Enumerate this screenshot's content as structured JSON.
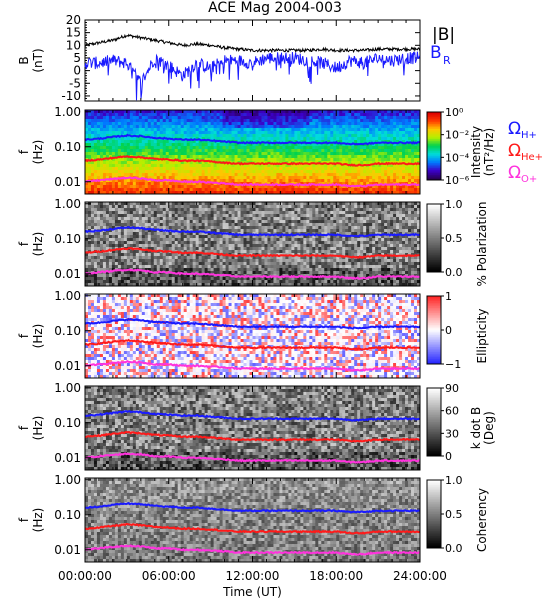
{
  "title": "ACE Mag 2004-003",
  "x_axis": {
    "label": "Time (UT)",
    "ticks": [
      "00:00:00",
      "06:00:00",
      "12:00:00",
      "18:00:00",
      "24:00:00"
    ],
    "range_hours": [
      0,
      24
    ]
  },
  "colors": {
    "bmag": "#000000",
    "br": "#1a1aff",
    "h_plus": "#1a1aff",
    "he_plus": "#ff1a1a",
    "o_plus": "#ff33dd"
  },
  "chart_data": [
    {
      "type": "line",
      "panel": "magnetic-field",
      "ylabel_lines": [
        "B",
        "(nT)"
      ],
      "ylim": [
        -12,
        20
      ],
      "yticks": [
        -10,
        -5,
        0,
        5,
        10,
        15,
        20
      ],
      "x_hours": [
        0,
        1,
        2,
        3,
        4,
        5,
        6,
        7,
        8,
        9,
        10,
        11,
        12,
        13,
        14,
        15,
        16,
        17,
        18,
        19,
        20,
        21,
        22,
        23,
        24
      ],
      "series": [
        {
          "name": "|B|",
          "values": [
            10,
            11,
            12,
            14,
            13,
            12,
            11,
            10,
            10.5,
            10,
            9,
            8.5,
            8,
            8,
            8,
            8,
            8,
            8.5,
            8,
            8,
            8,
            8.5,
            8.5,
            8.5,
            8.5
          ]
        },
        {
          "name": "B_R",
          "values": [
            3,
            3,
            4,
            3,
            -5,
            5,
            2,
            -2,
            3,
            1,
            4,
            4,
            3,
            5,
            5,
            5,
            4,
            3,
            1,
            4,
            3,
            5,
            4,
            5,
            5
          ]
        }
      ],
      "legend": [
        "|B|",
        "B",
        "R"
      ]
    },
    {
      "type": "heatmap",
      "panel": "intensity",
      "ylabel_lines": [
        "f",
        "(Hz)"
      ],
      "yticks": [
        "1.00",
        "0.10",
        "0.01"
      ],
      "colorbar": {
        "label_lines": [
          "Intensity",
          "(nT²/Hz)"
        ],
        "ticks": [
          "10⁰",
          "10⁻²",
          "10⁻⁴",
          "10⁻⁶"
        ],
        "scale": "rainbow"
      },
      "legend": [
        "Ω",
        "H+",
        "Ω",
        "He+",
        "Ω",
        "O+"
      ]
    },
    {
      "type": "heatmap",
      "panel": "polarization",
      "ylabel_lines": [
        "f",
        "(Hz)"
      ],
      "yticks": [
        "1.00",
        "0.10",
        "0.01"
      ],
      "colorbar": {
        "label_lines": [
          "% Polarization"
        ],
        "ticks": [
          "1.0",
          "0.5",
          "0.0"
        ],
        "scale": "gray"
      }
    },
    {
      "type": "heatmap",
      "panel": "ellipticity",
      "ylabel_lines": [
        "f",
        "(Hz)"
      ],
      "yticks": [
        "1.00",
        "0.10",
        "0.01"
      ],
      "colorbar": {
        "label_lines": [
          "Ellipticity"
        ],
        "ticks": [
          "1",
          "0",
          "−1"
        ],
        "scale": "bwr"
      }
    },
    {
      "type": "heatmap",
      "panel": "wave-normal-angle",
      "ylabel_lines": [
        "f",
        "(Hz)"
      ],
      "yticks": [
        "1.00",
        "0.10",
        "0.01"
      ],
      "colorbar": {
        "label_lines": [
          "k dot B",
          "(Deg)"
        ],
        "ticks": [
          "90",
          "60",
          "30",
          "0"
        ],
        "scale": "gray"
      }
    },
    {
      "type": "heatmap",
      "panel": "coherency",
      "ylabel_lines": [
        "f",
        "(Hz)"
      ],
      "yticks": [
        "1.00",
        "0.10",
        "0.01"
      ],
      "colorbar": {
        "label_lines": [
          "Coherency"
        ],
        "ticks": [
          "1.0",
          "0.5",
          "0.0"
        ],
        "scale": "gray"
      }
    }
  ],
  "gyrofrequency_lines_hz": {
    "x_hours": [
      0,
      1,
      2,
      3,
      4,
      5,
      6,
      7,
      8,
      9,
      10,
      11,
      12,
      13,
      14,
      15,
      16,
      17,
      18,
      19,
      20,
      21,
      22,
      23,
      24
    ],
    "H+": [
      0.16,
      0.17,
      0.19,
      0.21,
      0.2,
      0.18,
      0.17,
      0.16,
      0.16,
      0.15,
      0.14,
      0.13,
      0.13,
      0.13,
      0.13,
      0.13,
      0.13,
      0.13,
      0.13,
      0.12,
      0.12,
      0.13,
      0.13,
      0.13,
      0.13
    ],
    "He+": [
      0.04,
      0.043,
      0.048,
      0.053,
      0.05,
      0.045,
      0.043,
      0.04,
      0.04,
      0.038,
      0.035,
      0.033,
      0.033,
      0.033,
      0.033,
      0.033,
      0.033,
      0.033,
      0.033,
      0.03,
      0.03,
      0.033,
      0.033,
      0.033,
      0.033
    ],
    "O+": [
      0.01,
      0.011,
      0.012,
      0.013,
      0.0125,
      0.011,
      0.011,
      0.01,
      0.01,
      0.0095,
      0.009,
      0.0083,
      0.0083,
      0.0083,
      0.0083,
      0.0083,
      0.0083,
      0.0083,
      0.0083,
      0.0075,
      0.0075,
      0.0083,
      0.0083,
      0.0083,
      0.0083
    ]
  }
}
